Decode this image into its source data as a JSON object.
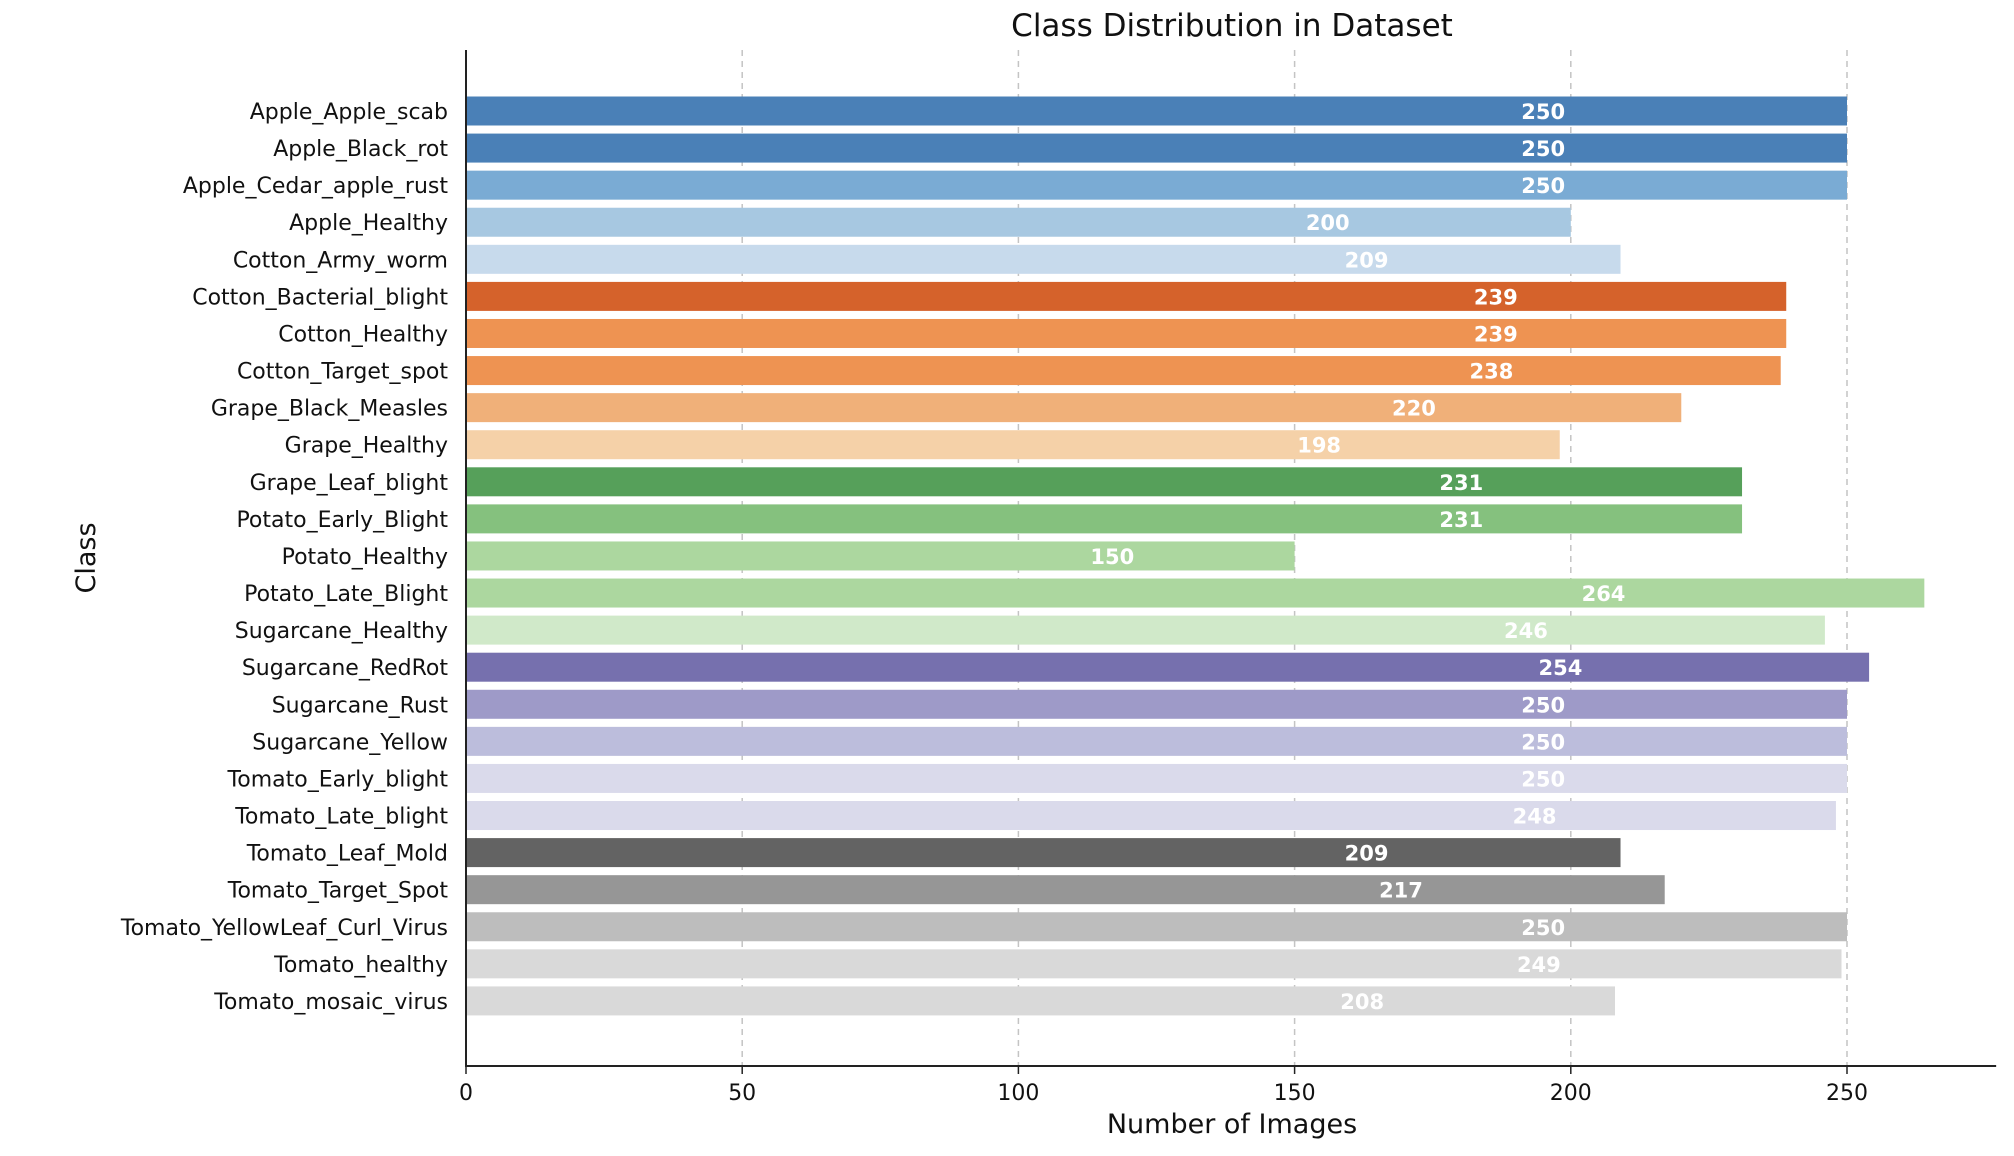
{
  "chart_data": {
    "type": "bar",
    "orientation": "horizontal",
    "title": "Class Distribution in Dataset",
    "xlabel": "Number of Images",
    "ylabel": "Class",
    "xlim": [
      0,
      277
    ],
    "xticks": [
      0,
      50,
      100,
      150,
      200,
      250
    ],
    "grid": "x-dashed",
    "legend": "none",
    "categories": [
      "Apple_Apple_scab",
      "Apple_Black_rot",
      "Apple_Cedar_apple_rust",
      "Apple_Healthy",
      "Cotton_Army_worm",
      "Cotton_Bacterial_blight",
      "Cotton_Healthy",
      "Cotton_Target_spot",
      "Grape_Black_Measles",
      "Grape_Healthy",
      "Grape_Leaf_blight",
      "Potato_Early_Blight",
      "Potato_Healthy",
      "Potato_Late_Blight",
      "Sugarcane_Healthy",
      "Sugarcane_RedRot",
      "Sugarcane_Rust",
      "Sugarcane_Yellow",
      "Tomato_Early_blight",
      "Tomato_Late_blight",
      "Tomato_Leaf_Mold",
      "Tomato_Target_Spot",
      "Tomato_YellowLeaf_Curl_Virus",
      "Tomato_healthy",
      "Tomato_mosaic_virus"
    ],
    "values": [
      250,
      250,
      250,
      200,
      209,
      239,
      239,
      238,
      220,
      198,
      231,
      231,
      150,
      264,
      246,
      254,
      250,
      250,
      250,
      248,
      209,
      217,
      250,
      249,
      208
    ],
    "colors": [
      "#4a80b7",
      "#4a80b7",
      "#7aabd4",
      "#a7c8e1",
      "#c7daec",
      "#d5622b",
      "#ee9352",
      "#ee9352",
      "#f0b079",
      "#f5d1a8",
      "#56a05a",
      "#85c17e",
      "#acd79f",
      "#acd79f",
      "#d0e9c9",
      "#7670ae",
      "#9e9ac8",
      "#bcbddc",
      "#dadaeb",
      "#dadaeb",
      "#636363",
      "#969696",
      "#bdbdbd",
      "#d9d9d9",
      "#d9d9d9"
    ]
  }
}
